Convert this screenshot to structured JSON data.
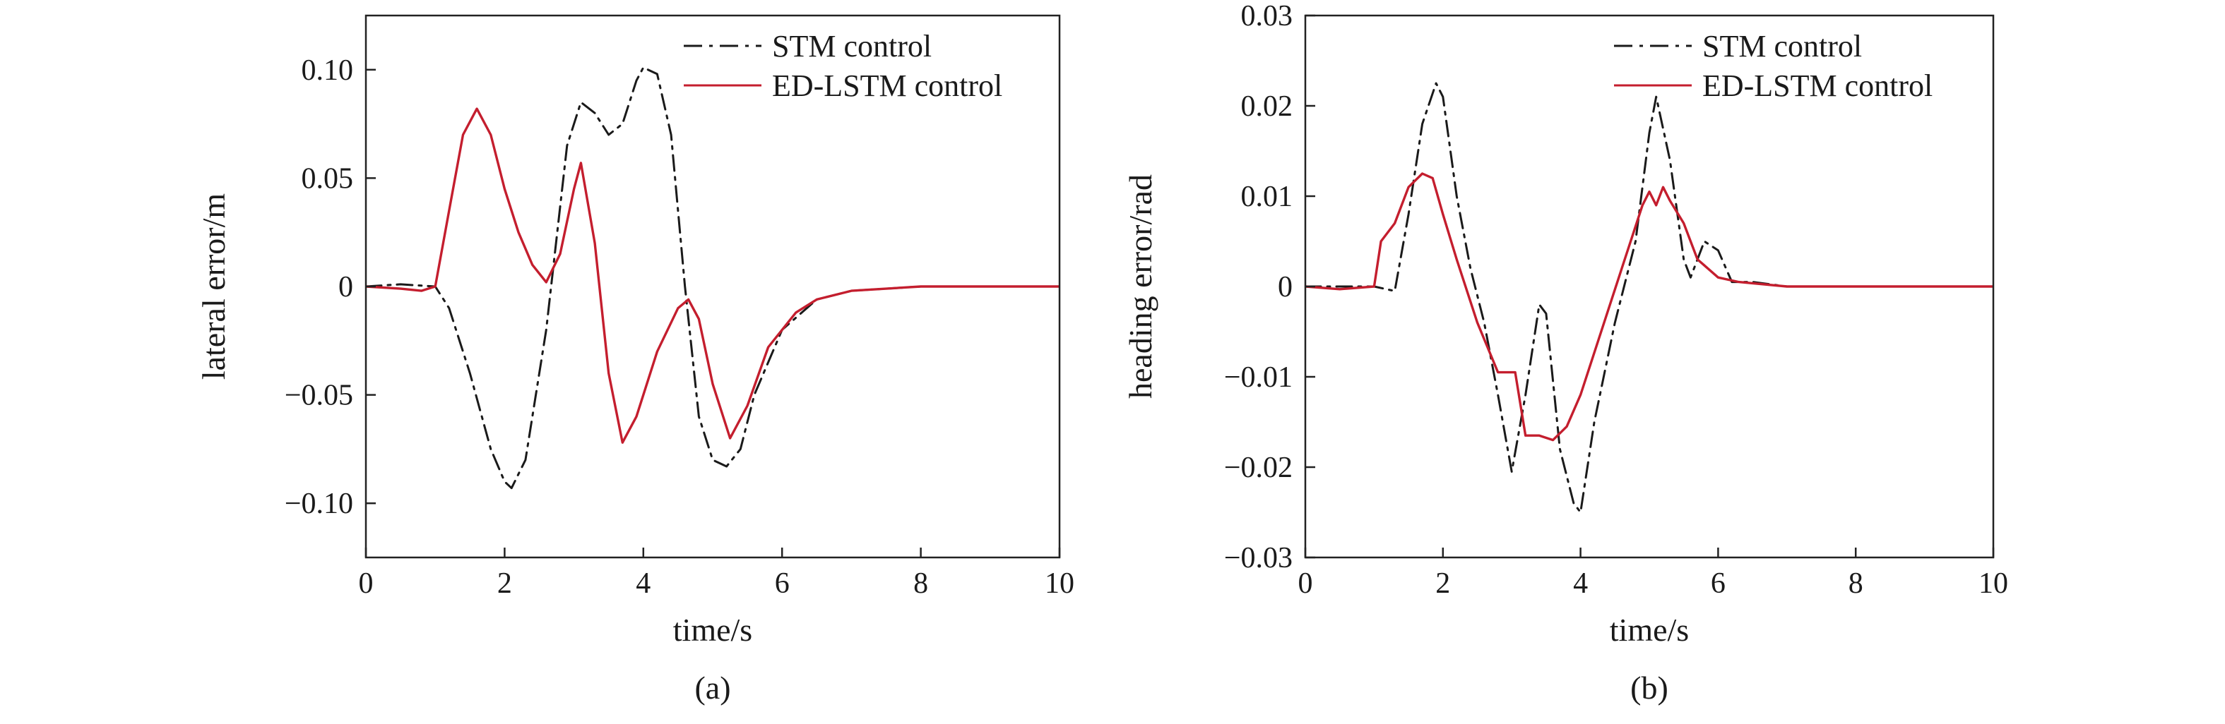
{
  "chart_data": [
    {
      "type": "line",
      "caption": "(a)",
      "xlabel": "time/s",
      "ylabel": "lateral error/m",
      "xlim": [
        0,
        10
      ],
      "ylim": [
        -0.125,
        0.125
      ],
      "xticks": [
        0,
        2,
        4,
        6,
        8,
        10
      ],
      "xtick_labels": [
        "0",
        "2",
        "4",
        "6",
        "8",
        "10"
      ],
      "yticks": [
        0.1,
        0.05,
        0,
        -0.05,
        -0.1
      ],
      "ytick_labels": [
        "0.10",
        "0.05",
        "0",
        "−0.05",
        "−0.10"
      ],
      "grid": false,
      "legend_position": "top-right",
      "series": [
        {
          "name": "STM control",
          "color": "#1a1a1a",
          "dash": "dashdot",
          "x": [
            0,
            0.5,
            1.0,
            1.2,
            1.5,
            1.8,
            2.0,
            2.1,
            2.3,
            2.6,
            2.9,
            3.1,
            3.3,
            3.5,
            3.7,
            3.9,
            4.0,
            4.2,
            4.4,
            4.6,
            4.8,
            5.0,
            5.2,
            5.4,
            5.6,
            6.0,
            6.5,
            7.0,
            8.0,
            10.0
          ],
          "y": [
            0,
            0.001,
            0,
            -0.01,
            -0.04,
            -0.075,
            -0.09,
            -0.093,
            -0.08,
            -0.02,
            0.065,
            0.085,
            0.08,
            0.07,
            0.075,
            0.095,
            0.101,
            0.098,
            0.07,
            0.0,
            -0.06,
            -0.08,
            -0.083,
            -0.075,
            -0.05,
            -0.02,
            -0.006,
            -0.002,
            0,
            0
          ]
        },
        {
          "name": "ED-LSTM control",
          "color": "#c41e2e",
          "dash": "solid",
          "x": [
            0,
            0.5,
            0.8,
            1.0,
            1.2,
            1.4,
            1.6,
            1.8,
            2.0,
            2.2,
            2.4,
            2.6,
            2.8,
            3.0,
            3.1,
            3.3,
            3.5,
            3.7,
            3.9,
            4.2,
            4.5,
            4.65,
            4.8,
            5.0,
            5.25,
            5.5,
            5.8,
            6.2,
            6.5,
            7.0,
            8.0,
            10.0
          ],
          "y": [
            0,
            -0.001,
            -0.002,
            0.0,
            0.035,
            0.07,
            0.082,
            0.07,
            0.045,
            0.025,
            0.01,
            0.002,
            0.015,
            0.045,
            0.057,
            0.02,
            -0.04,
            -0.072,
            -0.06,
            -0.03,
            -0.01,
            -0.006,
            -0.015,
            -0.045,
            -0.07,
            -0.055,
            -0.028,
            -0.012,
            -0.006,
            -0.002,
            0,
            0
          ]
        }
      ]
    },
    {
      "type": "line",
      "caption": "(b)",
      "xlabel": "time/s",
      "ylabel": "heading error/rad",
      "xlim": [
        0,
        10
      ],
      "ylim": [
        -0.03,
        0.03
      ],
      "xticks": [
        0,
        2,
        4,
        6,
        8,
        10
      ],
      "xtick_labels": [
        "0",
        "2",
        "4",
        "6",
        "8",
        "10"
      ],
      "yticks": [
        0.03,
        0.02,
        0.01,
        0,
        -0.01,
        -0.02,
        -0.03
      ],
      "ytick_labels": [
        "0.03",
        "0.02",
        "0.01",
        "0",
        "−0.01",
        "−0.02",
        "−0.03"
      ],
      "grid": false,
      "legend_position": "top-right",
      "series": [
        {
          "name": "STM control",
          "color": "#1a1a1a",
          "dash": "dashdot",
          "x": [
            0,
            0.5,
            1.0,
            1.3,
            1.5,
            1.7,
            1.9,
            2.0,
            2.2,
            2.4,
            2.6,
            2.8,
            3.0,
            3.2,
            3.4,
            3.5,
            3.7,
            3.9,
            4.0,
            4.2,
            4.5,
            4.8,
            5.0,
            5.1,
            5.3,
            5.5,
            5.6,
            5.8,
            6.0,
            6.2,
            6.5,
            7.0,
            10.0
          ],
          "y": [
            0,
            0,
            0,
            -0.0005,
            0.008,
            0.018,
            0.0225,
            0.021,
            0.01,
            0.002,
            -0.004,
            -0.012,
            -0.0205,
            -0.012,
            -0.002,
            -0.003,
            -0.018,
            -0.024,
            -0.025,
            -0.015,
            -0.004,
            0.005,
            0.017,
            0.021,
            0.014,
            0.003,
            0.001,
            0.005,
            0.004,
            0.0005,
            0.0005,
            0,
            0
          ]
        },
        {
          "name": "ED-LSTM control",
          "color": "#c41e2e",
          "dash": "solid",
          "x": [
            0,
            0.5,
            1.0,
            1.1,
            1.3,
            1.5,
            1.7,
            1.85,
            2.0,
            2.2,
            2.5,
            2.8,
            2.95,
            3.05,
            3.2,
            3.4,
            3.6,
            3.8,
            4.0,
            4.3,
            4.6,
            4.9,
            5.0,
            5.1,
            5.2,
            5.3,
            5.5,
            5.7,
            6.0,
            6.3,
            7.0,
            10.0
          ],
          "y": [
            0,
            -0.0003,
            0,
            0.005,
            0.007,
            0.011,
            0.0125,
            0.012,
            0.008,
            0.003,
            -0.004,
            -0.0095,
            -0.0095,
            -0.0095,
            -0.0165,
            -0.0165,
            -0.017,
            -0.0155,
            -0.012,
            -0.005,
            0.002,
            0.009,
            0.0105,
            0.009,
            0.011,
            0.0095,
            0.007,
            0.003,
            0.001,
            0.0005,
            0,
            0
          ]
        }
      ]
    }
  ]
}
